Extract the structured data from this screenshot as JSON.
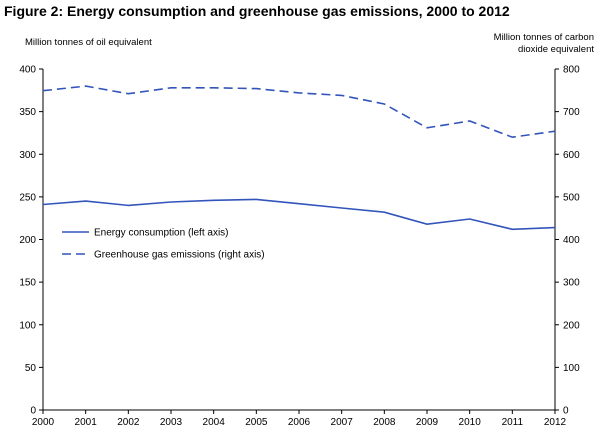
{
  "chart_data": {
    "type": "line",
    "title": "Figure 2: Energy consumption and greenhouse gas emissions, 2000 to 2012",
    "ylabel_left": "Million tonnes of oil equivalent",
    "ylabel_right": "Million tonnes of carbon dioxide equivalent",
    "x": [
      "2000",
      "2001",
      "2002",
      "2003",
      "2004",
      "2005",
      "2006",
      "2007",
      "2008",
      "2009",
      "2010",
      "2011",
      "2012"
    ],
    "ylim_left": [
      0,
      400
    ],
    "ylim_right": [
      0,
      800
    ],
    "yticks_left": [
      "0",
      "50",
      "100",
      "150",
      "200",
      "250",
      "300",
      "350",
      "400"
    ],
    "yticks_right": [
      "0",
      "100",
      "200",
      "300",
      "400",
      "500",
      "600",
      "700",
      "800"
    ],
    "series": [
      {
        "name": "Energy consumption (left axis)",
        "axis": "left",
        "style": "solid",
        "color": "#3355BB",
        "values": [
          241,
          245,
          240,
          244,
          246,
          247,
          242,
          237,
          232,
          218,
          224,
          212,
          214
        ]
      },
      {
        "name": "Greenhouse gas emissions (right axis)",
        "axis": "right",
        "style": "dashed",
        "color": "#3355BB",
        "values": [
          749,
          760,
          742,
          756,
          756,
          754,
          744,
          738,
          718,
          662,
          678,
          640,
          654
        ]
      }
    ],
    "legend_position": "left-middle",
    "grid": false
  }
}
